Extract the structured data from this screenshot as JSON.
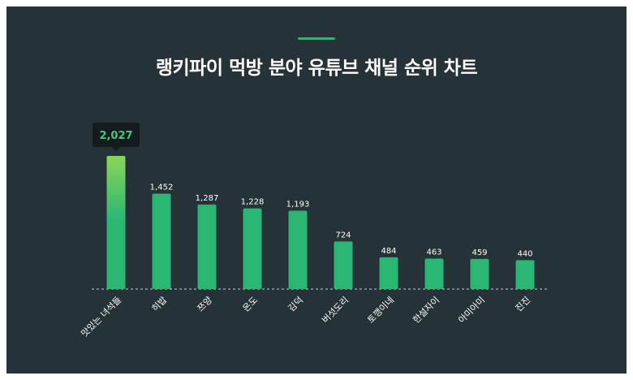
{
  "title": "랭키파이 먹방 분야 유튜브 채널 순위 차트",
  "colors": {
    "background": "#253238",
    "bar": "#2bb673",
    "bar_highlight_top": "#8bd65a",
    "accent": "#2bb673",
    "tooltip_bg": "#141b1f",
    "tooltip_text": "#3ecb7e"
  },
  "chart_data": {
    "type": "bar",
    "title": "랭키파이 먹방 분야 유튜브 채널 순위 차트",
    "categories": [
      "맛있는 녀석들",
      "히밥",
      "쯔양",
      "온도",
      "김덕",
      "버섯도리",
      "토깽이네",
      "한설자이",
      "아미아미",
      "진진"
    ],
    "values": [
      2027,
      1452,
      1287,
      1228,
      1193,
      724,
      484,
      463,
      459,
      440
    ],
    "value_labels": [
      "2,027",
      "1,452",
      "1,287",
      "1,228",
      "1,193",
      "724",
      "484",
      "463",
      "459",
      "440"
    ],
    "highlighted_index": 0,
    "ylim": [
      0,
      2027
    ],
    "grid": false,
    "legend": "none",
    "xlabel": "",
    "ylabel": ""
  }
}
